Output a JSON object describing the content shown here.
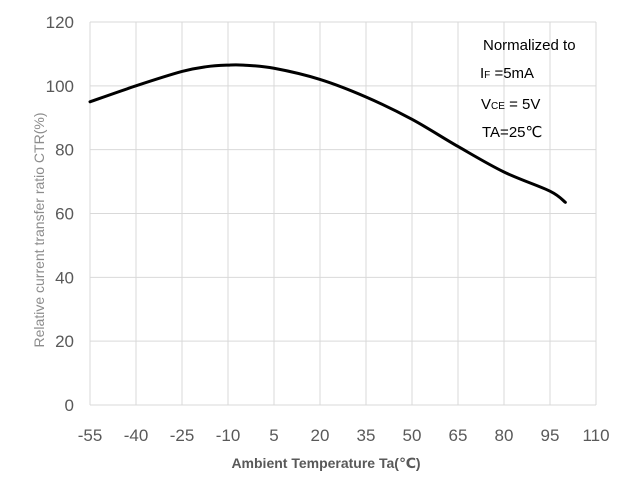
{
  "chart_data": {
    "type": "line",
    "title": "",
    "xlabel": "Ambient Temperature Ta(℃)",
    "ylabel": "Relative current transfer ratio CTR(%)",
    "xlim": [
      -55,
      110
    ],
    "ylim": [
      0,
      120
    ],
    "x_ticks": [
      "-55",
      "-40",
      "-25",
      "-10",
      "5",
      "20",
      "35",
      "50",
      "65",
      "80",
      "95",
      "110"
    ],
    "y_ticks": [
      "0",
      "20",
      "40",
      "60",
      "80",
      "100",
      "120"
    ],
    "grid": true,
    "series": [
      {
        "x": [
          -55,
          -40,
          -25,
          -17,
          -10,
          -5,
          5,
          20,
          35,
          50,
          65,
          80,
          95,
          100
        ],
        "y": [
          95,
          100,
          104.5,
          106,
          106.5,
          106.5,
          105.5,
          102,
          96.5,
          89.5,
          81,
          73,
          67,
          63.5
        ],
        "color": "#000000"
      }
    ],
    "annotation": {
      "line1": "Normalized to",
      "line2_main": "I",
      "line2_sub": "F",
      "line2_rest": " =5mA",
      "line3_main": "V",
      "line3_sub": "CE",
      "line3_rest": " = 5V",
      "line4": "TA=25℃"
    }
  }
}
